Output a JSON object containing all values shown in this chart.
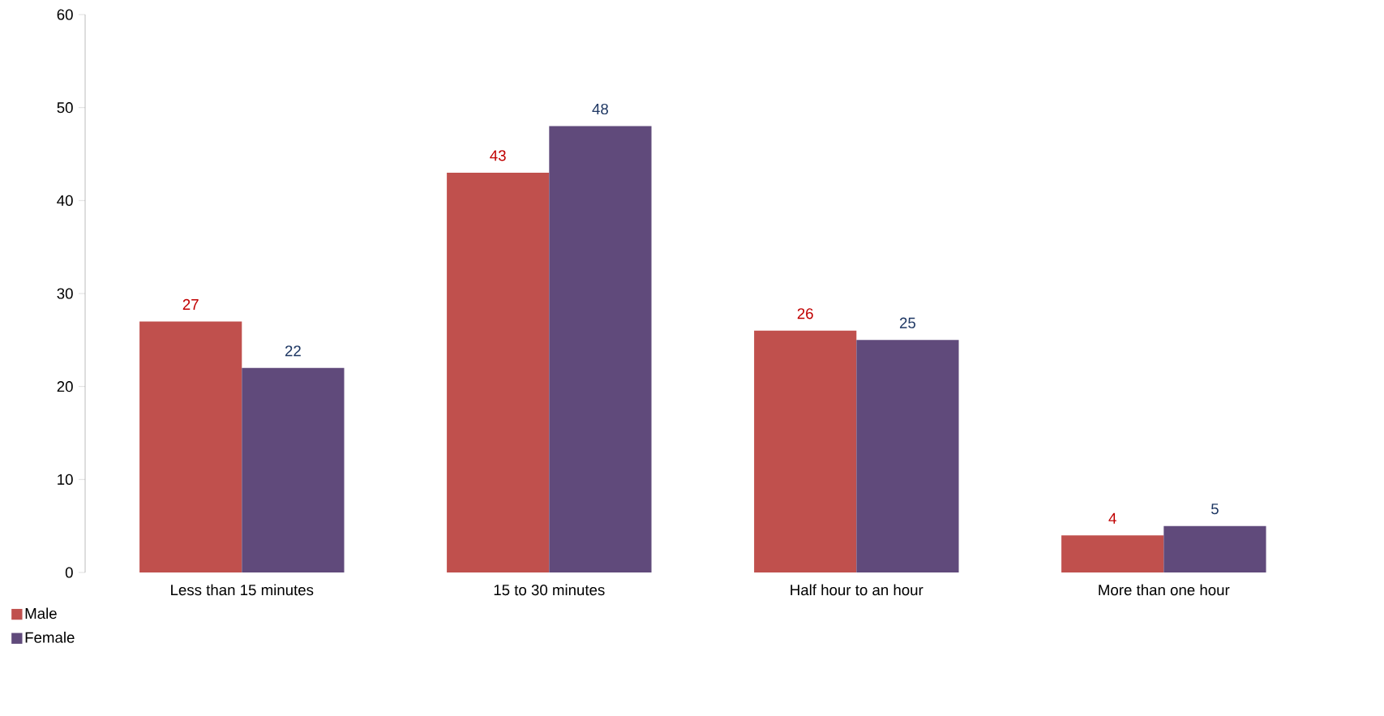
{
  "chart_data": {
    "type": "bar",
    "categories": [
      "Less than 15 minutes",
      "15 to 30 minutes",
      "Half hour to an hour",
      "More than one hour"
    ],
    "series": [
      {
        "name": "Male",
        "color": "#c0504d",
        "values": [
          27,
          43,
          26,
          4
        ]
      },
      {
        "name": "Female",
        "color": "#604a7b",
        "values": [
          22,
          48,
          25,
          5
        ]
      }
    ],
    "ylim": [
      0,
      60
    ],
    "yticks": [
      0,
      10,
      20,
      30,
      40,
      50,
      60
    ],
    "data_labels": true,
    "grid": false,
    "legend": "bottom left"
  }
}
